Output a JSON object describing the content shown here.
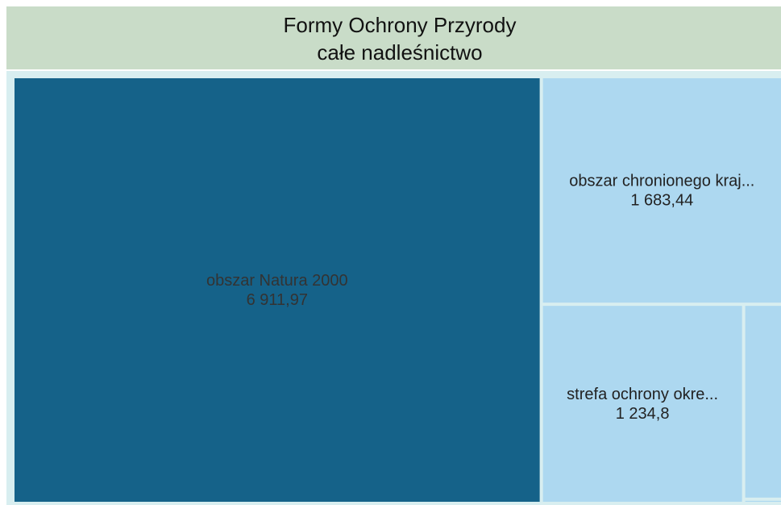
{
  "chart_data": {
    "type": "treemap",
    "title": "Formy Ochrony Przyrody",
    "subtitle": "całe nadleśnictwo",
    "categories": [
      "obszar Natura 2000",
      "obszar chronionego kraj...",
      "strefa ochrony okre...",
      null,
      null
    ],
    "values": [
      6911.97,
      1683.44,
      1234.8,
      233,
      5
    ],
    "value_labels": [
      "6 911,97",
      "1 683,44",
      "1 234,8",
      null,
      null
    ],
    "colors": [
      "#156289",
      "#add8f0",
      "#add8f0",
      "#add8f0",
      "#add8f0"
    ]
  }
}
